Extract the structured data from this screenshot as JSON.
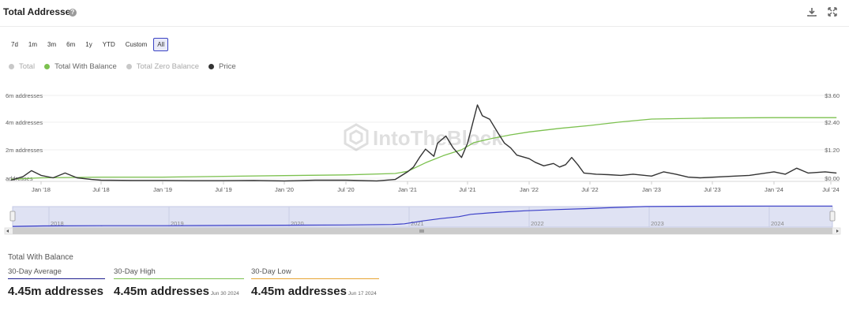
{
  "header": {
    "title": "Total Addresses",
    "help_glyph": "?"
  },
  "icons": {
    "download": "download-icon",
    "expand": "expand-icon"
  },
  "ranges": [
    "7d",
    "1m",
    "3m",
    "6m",
    "1y",
    "YTD",
    "Custom",
    "All"
  ],
  "active_range": "All",
  "legend": [
    {
      "label": "Total",
      "color": "#c8c8c8",
      "text_color": "#aaaaaa"
    },
    {
      "label": "Total With Balance",
      "color": "#7cc14f",
      "text_color": "#666666"
    },
    {
      "label": "Total Zero Balance",
      "color": "#c8c8c8",
      "text_color": "#aaaaaa"
    },
    {
      "label": "Price",
      "color": "#333333",
      "text_color": "#666666"
    }
  ],
  "watermark": "IntoTheBlock",
  "chart_data": {
    "type": "line",
    "y_ticks_left": [
      "6m addresses",
      "4m addresses",
      "2m addresses",
      "addresses"
    ],
    "y_ticks_right": [
      "$3.60",
      "$2.40",
      "$1.20",
      "$0.00"
    ],
    "x_ticks": [
      "Jan '18",
      "Jul '18",
      "Jan '19",
      "Jul '19",
      "Jan '20",
      "Jul '20",
      "Jan '21",
      "Jul '21",
      "Jan '22",
      "Jul '22",
      "Jan '23",
      "Jul '23",
      "Jan '24",
      "Jul '24"
    ],
    "navigator_ticks": [
      "2018",
      "2019",
      "2020",
      "2021",
      "2022",
      "2023",
      "2024"
    ],
    "ylim_left": [
      0,
      6000000
    ],
    "ylim_right": [
      0,
      3.6
    ],
    "xlim": [
      2017.75,
      2024.55
    ],
    "series": [
      {
        "name": "Total With Balance",
        "color": "#7cc14f",
        "axis": "left",
        "x": [
          2017.75,
          2018.0,
          2018.5,
          2019.0,
          2019.5,
          2020.0,
          2020.5,
          2020.9,
          2021.0,
          2021.15,
          2021.3,
          2021.45,
          2021.55,
          2021.7,
          2021.85,
          2022.0,
          2022.25,
          2022.5,
          2022.75,
          2023.0,
          2023.5,
          2024.0,
          2024.55
        ],
        "values": [
          150000,
          250000,
          300000,
          300000,
          350000,
          400000,
          450000,
          550000,
          700000,
          1300000,
          1800000,
          2200000,
          2700000,
          3000000,
          3250000,
          3450000,
          3700000,
          3900000,
          4150000,
          4350000,
          4420000,
          4450000,
          4450000
        ]
      },
      {
        "name": "Price",
        "color": "#333333",
        "axis": "right",
        "x": [
          2017.75,
          2017.85,
          2017.92,
          2018.0,
          2018.1,
          2018.2,
          2018.3,
          2018.42,
          2018.5,
          2018.75,
          2019.0,
          2019.25,
          2019.5,
          2019.75,
          2020.0,
          2020.25,
          2020.5,
          2020.75,
          2020.9,
          2021.0,
          2021.05,
          2021.1,
          2021.15,
          2021.22,
          2021.25,
          2021.32,
          2021.38,
          2021.45,
          2021.5,
          2021.58,
          2021.62,
          2021.68,
          2021.75,
          2021.8,
          2021.85,
          2021.9,
          2022.0,
          2022.05,
          2022.12,
          2022.2,
          2022.25,
          2022.3,
          2022.35,
          2022.4,
          2022.45,
          2022.55,
          2022.65,
          2022.75,
          2022.85,
          2023.0,
          2023.1,
          2023.2,
          2023.3,
          2023.4,
          2023.6,
          2023.8,
          2024.0,
          2024.1,
          2024.2,
          2024.3,
          2024.45,
          2024.55
        ],
        "values": [
          0.05,
          0.2,
          0.45,
          0.25,
          0.15,
          0.35,
          0.15,
          0.08,
          0.05,
          0.04,
          0.04,
          0.03,
          0.03,
          0.04,
          0.02,
          0.05,
          0.05,
          0.02,
          0.08,
          0.4,
          0.6,
          1.0,
          1.35,
          1.05,
          1.6,
          1.9,
          1.4,
          1.0,
          1.6,
          3.2,
          2.75,
          2.6,
          2.0,
          1.6,
          1.4,
          1.1,
          0.95,
          0.8,
          0.65,
          0.75,
          0.6,
          0.7,
          1.0,
          0.7,
          0.35,
          0.3,
          0.28,
          0.25,
          0.3,
          0.22,
          0.4,
          0.3,
          0.18,
          0.15,
          0.2,
          0.25,
          0.4,
          0.3,
          0.55,
          0.35,
          0.4,
          0.35
        ]
      }
    ]
  },
  "stats": {
    "title": "Total With Balance",
    "items": [
      {
        "label": "30-Day Average",
        "value": "4.45m addresses",
        "date": "",
        "color": "#1f1f8f"
      },
      {
        "label": "30-Day High",
        "value": "4.45m addresses",
        "date": "Jun 30 2024",
        "color": "#7cc14f"
      },
      {
        "label": "30-Day Low",
        "value": "4.45m addresses",
        "date": "Jun 17 2024",
        "color": "#e7a534"
      }
    ]
  }
}
